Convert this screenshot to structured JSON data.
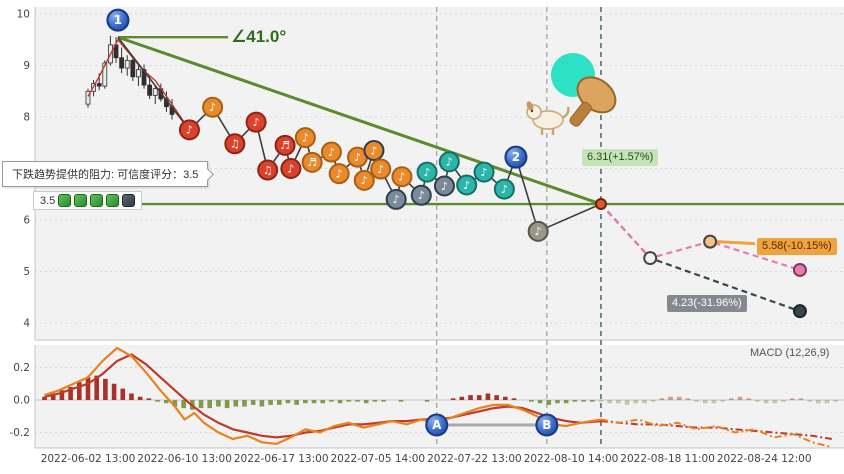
{
  "colors": {
    "red": "#d9432e",
    "red_ring": "#8f2316",
    "orange": "#e98a2d",
    "orange_ring": "#a85f14",
    "orangedark": "#e98a2d",
    "orangedark_ring": "#2c3e50",
    "teal": "#2cb5a8",
    "teal_ring": "#156f68",
    "slate": "#7b8a99",
    "slate_ring": "#2c3e50",
    "gray": "#9b9488",
    "gray_ring": "#5a554c",
    "trend": "#5c8a2e",
    "pink": "#e87bb0",
    "dark": "#37474f",
    "dif": "#e8821e",
    "dea": "#c0392b",
    "hist_pos": "#a8322a",
    "hist_neg": "#7e9a4b",
    "grid": "#d8d8d8",
    "axis_text": "#444444",
    "vline_gray": "#9e9e9e",
    "vline_dark": "#546e7a",
    "candle": "#2f2f2f",
    "ma": "#c0392b"
  },
  "tooltip": {
    "text": "下跌趋势提供的阻力: 可信度评分：3.5"
  },
  "score_badge": {
    "score": "3.5",
    "stickers": [
      "green",
      "green",
      "green",
      "green",
      "dark"
    ]
  },
  "labels": {
    "angle": "∠41.0°",
    "current": "6.31(+1.57%)",
    "mid": "5.58(-10.15%)",
    "low": "4.23(-31.96%)"
  },
  "markers": [
    {
      "label": "1",
      "panel": "price",
      "t": 0.31,
      "p": 9.88
    },
    {
      "label": "2",
      "panel": "price",
      "t": 4.43,
      "p": 7.22
    },
    {
      "label": "A",
      "panel": "macd",
      "t": 3.61,
      "v": -0.154
    },
    {
      "label": "B",
      "panel": "macd",
      "t": 4.75,
      "v": -0.154
    }
  ],
  "chart_data": [
    {
      "type": "candlestick",
      "panel": "price",
      "x_unit": "tick index (0 = first x tick)",
      "ylim": [
        4,
        10
      ],
      "yticks": [
        10,
        9,
        8,
        7,
        6,
        5,
        4
      ],
      "x_ticks": [
        {
          "t": 0,
          "label": "2022-06-02 13:00"
        },
        {
          "t": 1,
          "label": "2022-06-10 13:00"
        },
        {
          "t": 2,
          "label": "2022-06-17 13:00"
        },
        {
          "t": 3,
          "label": "2022-07-05 14:00"
        },
        {
          "t": 4,
          "label": "2022-07-22 13:00"
        },
        {
          "t": 5,
          "label": "2022-08-10 14:00"
        },
        {
          "t": 6,
          "label": "2022-08-18 11:00"
        },
        {
          "t": 7,
          "label": "2022-08-24 12:00"
        }
      ],
      "candles": {
        "t0": 0.0,
        "dt": 0.058,
        "ohlc": [
          [
            8.25,
            8.55,
            8.18,
            8.5
          ],
          [
            8.5,
            8.72,
            8.4,
            8.65
          ],
          [
            8.65,
            8.85,
            8.52,
            8.6
          ],
          [
            8.6,
            9.1,
            8.55,
            9.05
          ],
          [
            9.05,
            9.58,
            9.0,
            9.4
          ],
          [
            9.4,
            9.55,
            9.05,
            9.15
          ],
          [
            9.15,
            9.35,
            8.85,
            8.95
          ],
          [
            8.95,
            9.2,
            8.8,
            9.1
          ],
          [
            9.1,
            9.18,
            8.7,
            8.78
          ],
          [
            8.78,
            9.0,
            8.6,
            8.92
          ],
          [
            8.92,
            9.02,
            8.55,
            8.62
          ],
          [
            8.62,
            8.8,
            8.35,
            8.42
          ],
          [
            8.42,
            8.6,
            8.25,
            8.55
          ],
          [
            8.55,
            8.65,
            8.3,
            8.35
          ],
          [
            8.35,
            8.5,
            8.1,
            8.2
          ],
          [
            8.2,
            8.35,
            7.95,
            8.05
          ]
        ]
      },
      "ma_line": [
        [
          0.0,
          8.4
        ],
        [
          0.12,
          8.8
        ],
        [
          0.2,
          9.1
        ],
        [
          0.31,
          9.5
        ],
        [
          0.42,
          9.25
        ],
        [
          0.55,
          8.95
        ],
        [
          0.7,
          8.7
        ],
        [
          0.85,
          8.3
        ],
        [
          1.05,
          7.75
        ]
      ],
      "trend_line": {
        "from": [
          0.31,
          9.55
        ],
        "to": [
          5.31,
          6.31
        ],
        "angle_deg": 41.0,
        "angle_leg_to": 1.45
      },
      "resistance_level": 6.31,
      "signal_path": [
        [
          0.31,
          9.55
        ],
        [
          1.05,
          7.75
        ],
        [
          1.29,
          8.19
        ],
        [
          1.52,
          7.48
        ],
        [
          1.74,
          7.9
        ],
        [
          1.86,
          6.97
        ],
        [
          2.04,
          7.45
        ],
        [
          2.1,
          7.0
        ],
        [
          2.25,
          7.6
        ],
        [
          2.32,
          7.12
        ],
        [
          2.52,
          7.32
        ],
        [
          2.6,
          6.9
        ],
        [
          2.79,
          7.22
        ],
        [
          2.86,
          6.77
        ],
        [
          2.96,
          7.35
        ],
        [
          3.03,
          6.99
        ],
        [
          3.19,
          6.4
        ],
        [
          3.25,
          6.84
        ],
        [
          3.45,
          6.48
        ],
        [
          3.51,
          6.93
        ],
        [
          3.69,
          6.66
        ],
        [
          3.74,
          7.13
        ],
        [
          3.92,
          6.68
        ],
        [
          4.1,
          6.93
        ],
        [
          4.31,
          6.6
        ],
        [
          4.43,
          7.22
        ],
        [
          4.66,
          5.78
        ],
        [
          5.31,
          6.31
        ]
      ],
      "signal_markers": [
        {
          "t": 1.05,
          "p": 7.75,
          "c": "red",
          "g": "♪"
        },
        {
          "t": 1.29,
          "p": 8.19,
          "c": "orange",
          "g": "♪"
        },
        {
          "t": 1.52,
          "p": 7.48,
          "c": "red",
          "g": "♫"
        },
        {
          "t": 1.74,
          "p": 7.9,
          "c": "red",
          "g": "♪"
        },
        {
          "t": 1.86,
          "p": 6.97,
          "c": "red",
          "g": "♫"
        },
        {
          "t": 2.04,
          "p": 7.45,
          "c": "red",
          "g": "♬"
        },
        {
          "t": 2.1,
          "p": 7.0,
          "c": "red",
          "g": "♪"
        },
        {
          "t": 2.25,
          "p": 7.6,
          "c": "orange",
          "g": "♪"
        },
        {
          "t": 2.32,
          "p": 7.12,
          "c": "orange",
          "g": "♬"
        },
        {
          "t": 2.52,
          "p": 7.32,
          "c": "orange",
          "g": "♪"
        },
        {
          "t": 2.6,
          "p": 6.9,
          "c": "orange",
          "g": "♪"
        },
        {
          "t": 2.79,
          "p": 7.22,
          "c": "orange",
          "g": "♪"
        },
        {
          "t": 2.86,
          "p": 6.77,
          "c": "orange",
          "g": "♪"
        },
        {
          "t": 2.96,
          "p": 7.35,
          "c": "orangedark",
          "g": "♪"
        },
        {
          "t": 3.03,
          "p": 6.99,
          "c": "orange",
          "g": "♪"
        },
        {
          "t": 3.19,
          "p": 6.4,
          "c": "slate",
          "g": "♪"
        },
        {
          "t": 3.25,
          "p": 6.84,
          "c": "orange",
          "g": "♪"
        },
        {
          "t": 3.45,
          "p": 6.48,
          "c": "slate",
          "g": "♪"
        },
        {
          "t": 3.51,
          "p": 6.93,
          "c": "teal",
          "g": "♪"
        },
        {
          "t": 3.69,
          "p": 6.66,
          "c": "slate",
          "g": "♪"
        },
        {
          "t": 3.74,
          "p": 7.13,
          "c": "teal",
          "g": "♪"
        },
        {
          "t": 3.92,
          "p": 6.68,
          "c": "teal",
          "g": "♪"
        },
        {
          "t": 4.1,
          "p": 6.93,
          "c": "teal",
          "g": "♪"
        },
        {
          "t": 4.31,
          "p": 6.6,
          "c": "teal",
          "g": "♪"
        },
        {
          "t": 4.66,
          "p": 5.78,
          "c": "gray",
          "g": "♪"
        }
      ],
      "projection_lines": {
        "pink": [
          [
            5.31,
            6.31
          ],
          [
            5.82,
            5.26
          ],
          [
            6.44,
            5.58
          ],
          [
            7.37,
            5.03
          ]
        ],
        "dark": [
          [
            5.31,
            6.31
          ],
          [
            5.82,
            5.26
          ],
          [
            7.37,
            4.23
          ]
        ]
      },
      "projection_points": [
        {
          "t": 5.31,
          "p": 6.31,
          "fill": "#e0582f",
          "ring": "#6e2410",
          "r": 5
        },
        {
          "t": 5.82,
          "p": 5.26,
          "fill": "#f2f2f2",
          "ring": "#444444",
          "r": 6
        },
        {
          "t": 6.44,
          "p": 5.58,
          "fill": "#f5c089",
          "ring": "#444444",
          "r": 6
        },
        {
          "t": 7.37,
          "p": 5.03,
          "fill": "#e87bb0",
          "ring": "#7c3a5c",
          "r": 6
        },
        {
          "t": 7.37,
          "p": 4.23,
          "fill": "#37474f",
          "ring": "#1c262c",
          "r": 6
        }
      ],
      "vlines": [
        {
          "t": 3.61,
          "style": "gray"
        },
        {
          "t": 4.75,
          "style": "gray"
        },
        {
          "t": 5.31,
          "style": "dark"
        }
      ]
    },
    {
      "type": "macd",
      "panel": "macd",
      "label": "MACD (12,26,9)",
      "ylim": [
        -0.33,
        0.35
      ],
      "yticks": [
        0.2,
        0,
        -0.2
      ],
      "hist": {
        "t0": -0.45,
        "dt": 0.09,
        "split_index": 64,
        "values": [
          0.02,
          0.04,
          0.06,
          0.08,
          0.11,
          0.14,
          0.15,
          0.13,
          0.1,
          0.07,
          0.04,
          0.02,
          0.01,
          -0.01,
          -0.02,
          -0.04,
          -0.05,
          -0.06,
          -0.05,
          -0.05,
          -0.04,
          -0.05,
          -0.04,
          -0.04,
          -0.03,
          -0.04,
          -0.03,
          -0.03,
          -0.02,
          -0.03,
          -0.02,
          -0.02,
          -0.02,
          -0.01,
          -0.02,
          -0.01,
          -0.01,
          -0.02,
          -0.01,
          -0.01,
          0,
          -0.01,
          0,
          0,
          -0.01,
          0,
          0,
          0.01,
          0.02,
          0.03,
          0.03,
          0.04,
          0.03,
          0.02,
          0.01,
          0,
          -0.01,
          -0.02,
          -0.03,
          -0.02,
          -0.02,
          -0.01,
          -0.01,
          -0.01,
          -0.01,
          -0.02,
          -0.02,
          -0.03,
          -0.02,
          -0.02,
          -0.01,
          0.01,
          0.02,
          0.02,
          0.01,
          -0.01,
          -0.02,
          -0.02,
          -0.01,
          0.01,
          0.02,
          0.01,
          -0.01,
          -0.02,
          -0.02,
          -0.01,
          0.01,
          0.01,
          -0.01,
          -0.02,
          -0.02,
          -0.01
        ]
      },
      "dif": {
        "hist": [
          [
            -0.45,
            0.03
          ],
          [
            -0.3,
            0.06
          ],
          [
            -0.15,
            0.1
          ],
          [
            0,
            0.14
          ],
          [
            0.15,
            0.24
          ],
          [
            0.3,
            0.32
          ],
          [
            0.45,
            0.27
          ],
          [
            0.6,
            0.17
          ],
          [
            0.75,
            0.06
          ],
          [
            0.9,
            -0.04
          ],
          [
            1.0,
            -0.12
          ],
          [
            1.1,
            -0.08
          ],
          [
            1.2,
            -0.14
          ],
          [
            1.35,
            -0.2
          ],
          [
            1.5,
            -0.24
          ],
          [
            1.65,
            -0.22
          ],
          [
            1.8,
            -0.26
          ],
          [
            1.95,
            -0.27
          ],
          [
            2.1,
            -0.23
          ],
          [
            2.25,
            -0.18
          ],
          [
            2.4,
            -0.2
          ],
          [
            2.55,
            -0.16
          ],
          [
            2.7,
            -0.14
          ],
          [
            2.85,
            -0.17
          ],
          [
            3.0,
            -0.15
          ],
          [
            3.15,
            -0.13
          ],
          [
            3.3,
            -0.15
          ],
          [
            3.45,
            -0.12
          ],
          [
            3.6,
            -0.14
          ],
          [
            3.75,
            -0.11
          ],
          [
            3.9,
            -0.08
          ],
          [
            4.05,
            -0.05
          ],
          [
            4.2,
            -0.03
          ],
          [
            4.35,
            -0.03
          ],
          [
            4.5,
            -0.06
          ],
          [
            4.65,
            -0.1
          ],
          [
            4.8,
            -0.15
          ],
          [
            4.95,
            -0.16
          ],
          [
            5.1,
            -0.14
          ],
          [
            5.31,
            -0.12
          ]
        ],
        "proj": [
          [
            5.31,
            -0.12
          ],
          [
            5.5,
            -0.14
          ],
          [
            5.7,
            -0.12
          ],
          [
            5.9,
            -0.16
          ],
          [
            6.1,
            -0.14
          ],
          [
            6.3,
            -0.18
          ],
          [
            6.5,
            -0.16
          ],
          [
            6.7,
            -0.2
          ],
          [
            6.9,
            -0.18
          ],
          [
            7.1,
            -0.23
          ],
          [
            7.3,
            -0.21
          ],
          [
            7.5,
            -0.26
          ],
          [
            7.7,
            -0.29
          ]
        ]
      },
      "dea": {
        "hist": [
          [
            -0.45,
            0.02
          ],
          [
            -0.3,
            0.04
          ],
          [
            -0.15,
            0.07
          ],
          [
            0,
            0.1
          ],
          [
            0.15,
            0.16
          ],
          [
            0.3,
            0.24
          ],
          [
            0.45,
            0.28
          ],
          [
            0.6,
            0.22
          ],
          [
            0.75,
            0.14
          ],
          [
            0.9,
            0.06
          ],
          [
            1.05,
            -0.02
          ],
          [
            1.2,
            -0.09
          ],
          [
            1.35,
            -0.14
          ],
          [
            1.5,
            -0.18
          ],
          [
            1.65,
            -0.2
          ],
          [
            1.8,
            -0.22
          ],
          [
            1.95,
            -0.23
          ],
          [
            2.1,
            -0.22
          ],
          [
            2.25,
            -0.2
          ],
          [
            2.4,
            -0.19
          ],
          [
            2.55,
            -0.17
          ],
          [
            2.7,
            -0.15
          ],
          [
            2.85,
            -0.15
          ],
          [
            3.0,
            -0.14
          ],
          [
            3.15,
            -0.13
          ],
          [
            3.3,
            -0.13
          ],
          [
            3.45,
            -0.12
          ],
          [
            3.6,
            -0.12
          ],
          [
            3.75,
            -0.11
          ],
          [
            3.9,
            -0.09
          ],
          [
            4.05,
            -0.07
          ],
          [
            4.2,
            -0.05
          ],
          [
            4.35,
            -0.04
          ],
          [
            4.5,
            -0.05
          ],
          [
            4.65,
            -0.08
          ],
          [
            4.8,
            -0.11
          ],
          [
            4.95,
            -0.13
          ],
          [
            5.1,
            -0.14
          ],
          [
            5.31,
            -0.13
          ]
        ],
        "proj": [
          [
            5.31,
            -0.13
          ],
          [
            5.5,
            -0.14
          ],
          [
            5.7,
            -0.15
          ],
          [
            5.9,
            -0.15
          ],
          [
            6.1,
            -0.16
          ],
          [
            6.3,
            -0.17
          ],
          [
            6.5,
            -0.17
          ],
          [
            6.7,
            -0.18
          ],
          [
            6.9,
            -0.19
          ],
          [
            7.1,
            -0.2
          ],
          [
            7.3,
            -0.21
          ],
          [
            7.5,
            -0.22
          ],
          [
            7.7,
            -0.24
          ]
        ]
      },
      "ab_line": [
        [
          3.61,
          -0.154
        ],
        [
          4.75,
          -0.154
        ]
      ]
    }
  ]
}
